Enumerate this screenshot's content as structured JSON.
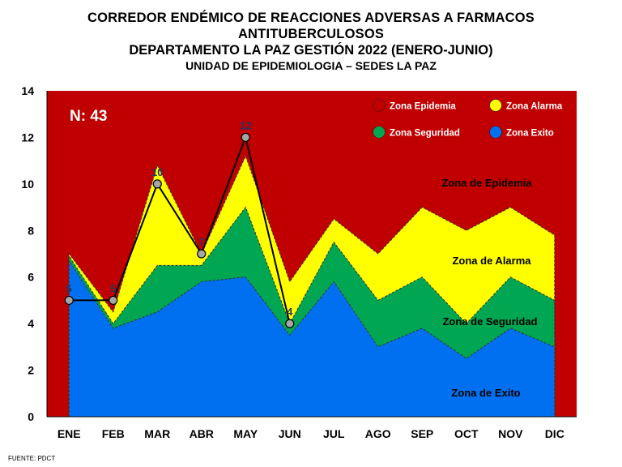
{
  "title_line1": "CORREDOR ENDÉMICO DE REACCIONES ADVERSAS  A FARMACOS\nANTITUBERCULOSOS",
  "title_line2": "DEPARTAMENTO  LA PAZ GESTIÓN 2022 (ENERO-JUNIO)",
  "title_line3": "UNIDAD DE EPIDEMIOLOGIA – SEDES LA PAZ",
  "source": "FUENTE:  PDCT",
  "colors": {
    "epidemia": "#c00000",
    "alarma": "#ffff00",
    "seguridad": "#00a651",
    "exito": "#0070f0",
    "line": "#000000",
    "marker": "#a6a6a6",
    "label": "#1f3864"
  },
  "chart_data": {
    "type": "area",
    "categories": [
      "ENE",
      "FEB",
      "MAR",
      "ABR",
      "MAY",
      "JUN",
      "JUL",
      "AGO",
      "SEP",
      "OCT",
      "NOV",
      "DIC"
    ],
    "ylim": [
      0,
      14
    ],
    "yticks": [
      0,
      2,
      4,
      6,
      8,
      10,
      12,
      14
    ],
    "grid": false,
    "n_label": "N: 43",
    "zones": {
      "exito": [
        6.7,
        3.8,
        4.5,
        5.8,
        6.0,
        3.5,
        5.8,
        3.0,
        3.8,
        2.5,
        3.8,
        3.0
      ],
      "seguridad": [
        6.9,
        4.0,
        6.5,
        6.5,
        9.0,
        4.0,
        7.5,
        5.0,
        6.0,
        4.0,
        6.0,
        5.0
      ],
      "alarma": [
        7.0,
        4.5,
        10.8,
        7.0,
        11.2,
        5.8,
        8.5,
        7.0,
        9.0,
        8.0,
        9.0,
        7.8
      ]
    },
    "legend": [
      {
        "key": "epidemia",
        "label": "Zona Epidemia"
      },
      {
        "key": "alarma",
        "label": "Zona Alarma"
      },
      {
        "key": "seguridad",
        "label": "Zona Seguridad"
      },
      {
        "key": "exito",
        "label": "Zona Exito"
      }
    ],
    "zone_labels": [
      {
        "key": "epidemia",
        "text": "Zona de Epidemia"
      },
      {
        "key": "alarma",
        "text": "Zona de Alarma"
      },
      {
        "key": "seguridad",
        "text": "Zona de Seguridad"
      },
      {
        "key": "exito",
        "text": "Zona de Exito"
      }
    ],
    "series": [
      {
        "x": [
          "ENE",
          "FEB",
          "MAR",
          "ABR",
          "MAY",
          "JUN"
        ],
        "values": [
          5,
          5,
          10,
          7,
          12,
          4
        ]
      }
    ]
  }
}
